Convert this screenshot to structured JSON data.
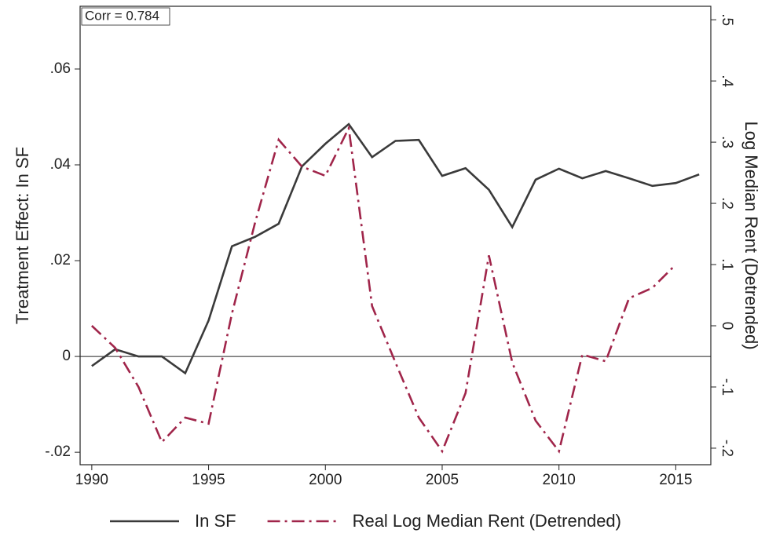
{
  "chart_data": {
    "type": "line",
    "annotation": "Corr = 0.784",
    "y_label": "Treatment Effect: In SF",
    "y2_label": "Log Median Rent (Detrended)",
    "xlim": [
      1989.5,
      2016.5
    ],
    "xticks": [
      1990,
      1995,
      2000,
      2005,
      2010,
      2015
    ],
    "ylim": [
      -0.0226,
      0.0731
    ],
    "yticks": [
      {
        "value": -0.02,
        "label": "-.02"
      },
      0,
      {
        "value": 0.02,
        "label": ".02"
      },
      {
        "value": 0.04,
        "label": ".04"
      },
      {
        "value": 0.06,
        "label": ".06"
      }
    ],
    "y2lim": [
      -0.227,
      0.522
    ],
    "y2ticks": [
      {
        "value": -0.2,
        "label": "-.2"
      },
      {
        "value": -0.1,
        "label": "-.1"
      },
      0,
      {
        "value": 0.1,
        "label": ".1"
      },
      {
        "value": 0.2,
        "label": ".2"
      },
      {
        "value": 0.3,
        "label": ".3"
      },
      {
        "value": 0.4,
        "label": ".4"
      },
      {
        "value": 0.5,
        "label": ".5"
      }
    ],
    "hline": 0,
    "series": [
      {
        "name": "In SF",
        "color": "#3a3a3a",
        "style": "solid",
        "x": [
          1990,
          1991,
          1992,
          1993,
          1994,
          1995,
          1996,
          1997,
          1998,
          1999,
          2000,
          2001,
          2002,
          2003,
          2004,
          2005,
          2006,
          2007,
          2008,
          2009,
          2010,
          2011,
          2012,
          2013,
          2014,
          2015,
          2016
        ],
        "values": [
          -0.002,
          0.0015,
          0,
          0,
          -0.0035,
          0.0075,
          0.023,
          0.025,
          0.0277,
          0.0397,
          0.0444,
          0.0485,
          0.0416,
          0.045,
          0.0452,
          0.0377,
          0.0393,
          0.0348,
          0.027,
          0.0369,
          0.0392,
          0.0372,
          0.0387,
          0.0372,
          0.0356,
          0.0362,
          0.038
        ]
      },
      {
        "name": "Real Log Median Rent (Detrended)",
        "color": "#a0254a",
        "style": "dashdot",
        "axis": "y2",
        "x": [
          1990,
          1991,
          1992,
          1993,
          1994,
          1995,
          1996,
          1997,
          1998,
          1999,
          2000,
          2001,
          2002,
          2003,
          2004,
          2005,
          2006,
          2007,
          2008,
          2009,
          2010,
          2011,
          2012,
          2013,
          2014,
          2015
        ],
        "values": [
          0,
          -0.036,
          -0.1,
          -0.19,
          -0.15,
          -0.16,
          0.02,
          0.17,
          0.304,
          0.26,
          0.245,
          0.323,
          0.032,
          -0.06,
          -0.15,
          -0.205,
          -0.11,
          0.115,
          -0.06,
          -0.155,
          -0.205,
          -0.047,
          -0.058,
          0.045,
          0.062,
          0.1
        ]
      }
    ]
  }
}
